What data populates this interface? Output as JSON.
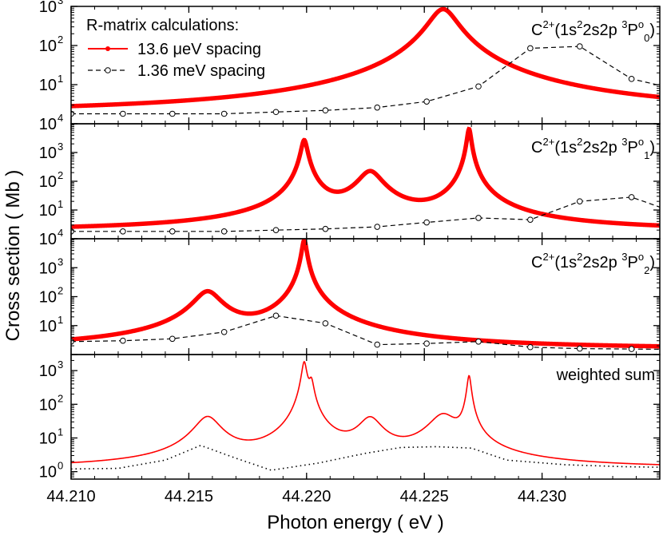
{
  "chart_data": {
    "type": "line",
    "xlabel": "Photon energy  ( eV )",
    "ylabel": "Cross section  ( Mb )",
    "xlim": [
      44.21,
      44.235
    ],
    "x_ticks": [
      "44.210",
      "44.215",
      "44.220",
      "44.225",
      "44.230"
    ],
    "x_tick_values": [
      44.21,
      44.215,
      44.22,
      44.225,
      44.23
    ],
    "y_scale": "log",
    "legend": {
      "title": "R-matrix calculations:",
      "placement": "top-left (panel 1)",
      "entries": [
        {
          "label": "13.6 μeV spacing",
          "color": "#ff0000",
          "style": "solid line with dots"
        },
        {
          "label": "1.36 meV spacing",
          "color": "#000000",
          "style": "dashed line with open circles"
        }
      ]
    },
    "panels": [
      {
        "label": {
          "base": "C",
          "charge": "2+",
          "config": "(1s",
          "sq1": "2",
          "mid": "2s2p ",
          "mult": "3",
          "term": "P",
          "parity": "o",
          "J": "0",
          "close": ")"
        },
        "ylim": [
          1,
          1000
        ],
        "yticks": [
          {
            "v": 10,
            "e": "1"
          },
          {
            "v": 100,
            "e": "2"
          },
          {
            "v": 1000,
            "e": "3"
          }
        ],
        "background": 1.8,
        "resonances": [
          {
            "x": 44.2258,
            "peak": 850,
            "width": 0.00055
          }
        ],
        "coarse": [
          [
            44.21,
            1.8
          ],
          [
            44.2122,
            1.8
          ],
          [
            44.2143,
            1.8
          ],
          [
            44.2165,
            1.8
          ],
          [
            44.2187,
            2.0
          ],
          [
            44.2208,
            2.2
          ],
          [
            44.223,
            2.6
          ],
          [
            44.2251,
            3.7
          ],
          [
            44.2273,
            9
          ],
          [
            44.2295,
            85
          ],
          [
            44.2316,
            95
          ],
          [
            44.2338,
            14
          ],
          [
            44.236,
            7
          ]
        ]
      },
      {
        "label": {
          "base": "C",
          "charge": "2+",
          "config": "(1s",
          "sq1": "2",
          "mid": "2s2p ",
          "mult": "3",
          "term": "P",
          "parity": "o",
          "J": "1",
          "close": ")"
        },
        "ylim": [
          1,
          10000
        ],
        "yticks": [
          {
            "v": 10,
            "e": "1"
          },
          {
            "v": 100,
            "e": "2"
          },
          {
            "v": 1000,
            "e": "3"
          },
          {
            "v": 10000,
            "e": "4"
          }
        ],
        "background": 1.8,
        "resonances": [
          {
            "x": 44.2199,
            "peak": 2700,
            "width": 0.00012
          },
          {
            "x": 44.2227,
            "peak": 220,
            "width": 0.00045
          },
          {
            "x": 44.2269,
            "peak": 6500,
            "width": 8e-05
          }
        ],
        "coarse": [
          [
            44.21,
            1.8
          ],
          [
            44.2122,
            1.8
          ],
          [
            44.2143,
            1.8
          ],
          [
            44.2165,
            1.8
          ],
          [
            44.2187,
            2.0
          ],
          [
            44.2208,
            2.2
          ],
          [
            44.223,
            2.6
          ],
          [
            44.2251,
            3.7
          ],
          [
            44.2273,
            5.3
          ],
          [
            44.2295,
            4.6
          ],
          [
            44.2316,
            20
          ],
          [
            44.2338,
            28
          ],
          [
            44.236,
            6.5
          ]
        ]
      },
      {
        "label": {
          "base": "C",
          "charge": "2+",
          "config": "(1s",
          "sq1": "2",
          "mid": "2s2p ",
          "mult": "3",
          "term": "P",
          "parity": "o",
          "J": "2",
          "close": ")"
        },
        "ylim": [
          1,
          10000
        ],
        "yticks": [
          {
            "v": 10,
            "e": "1"
          },
          {
            "v": 100,
            "e": "2"
          },
          {
            "v": 1000,
            "e": "3"
          },
          {
            "v": 10000,
            "e": "4"
          }
        ],
        "background": 1.5,
        "resonances": [
          {
            "x": 44.2158,
            "peak": 150,
            "width": 0.0005
          },
          {
            "x": 44.2199,
            "peak": 9000,
            "width": 9e-05
          }
        ],
        "coarse": [
          [
            44.21,
            2.8
          ],
          [
            44.2122,
            3.0
          ],
          [
            44.2143,
            3.5
          ],
          [
            44.2165,
            6
          ],
          [
            44.2187,
            22
          ],
          [
            44.2208,
            12
          ],
          [
            44.223,
            2.2
          ],
          [
            44.2251,
            2.4
          ],
          [
            44.2273,
            2.8
          ],
          [
            44.2295,
            1.8
          ],
          [
            44.2316,
            1.6
          ],
          [
            44.2338,
            1.55
          ],
          [
            44.236,
            1.5
          ]
        ]
      },
      {
        "label": {
          "text": "weighted sum"
        },
        "ylim": [
          0.6,
          3000
        ],
        "yticks": [
          {
            "v": 1,
            "e": "0"
          },
          {
            "v": 10,
            "e": "1"
          },
          {
            "v": 100,
            "e": "2"
          },
          {
            "v": 1000,
            "e": "3"
          }
        ],
        "background": 1.2,
        "resonances": [
          {
            "x": 44.2158,
            "peak": 42,
            "width": 0.0005
          },
          {
            "x": 44.2199,
            "peak": 1800,
            "width": 0.0001
          },
          {
            "x": 44.2202,
            "peak": 450,
            "width": 0.0001
          },
          {
            "x": 44.2227,
            "peak": 38,
            "width": 0.00045
          },
          {
            "x": 44.2258,
            "peak": 48,
            "width": 0.00055
          },
          {
            "x": 44.2269,
            "peak": 700,
            "width": 8e-05
          }
        ],
        "coarse": [
          [
            44.21,
            1.2
          ],
          [
            44.212,
            1.25
          ],
          [
            44.214,
            2.2
          ],
          [
            44.2155,
            6.0
          ],
          [
            44.217,
            2.5
          ],
          [
            44.2185,
            1.1
          ],
          [
            44.2205,
            1.8
          ],
          [
            44.2225,
            3.5
          ],
          [
            44.224,
            5.2
          ],
          [
            44.2255,
            5.5
          ],
          [
            44.227,
            5.0
          ],
          [
            44.2285,
            2.2
          ],
          [
            44.231,
            1.6
          ],
          [
            44.2335,
            1.4
          ],
          [
            44.235,
            1.35
          ]
        ]
      }
    ]
  }
}
